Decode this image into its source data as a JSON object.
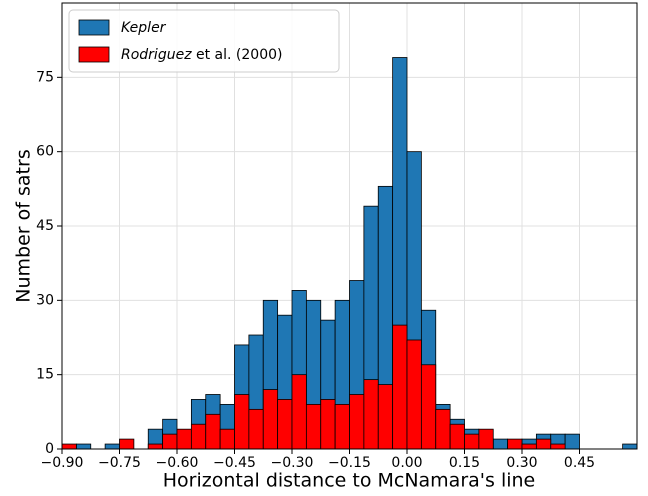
{
  "chart_data": {
    "type": "histogram",
    "x_label": "Horizontal distance to McNamara's line",
    "y_label": "Number of satrs",
    "bins": [
      -0.9,
      -0.8625,
      -0.825,
      -0.7875,
      -0.75,
      -0.7125,
      -0.675,
      -0.6375,
      -0.6,
      -0.5625,
      -0.525,
      -0.4875,
      -0.45,
      -0.4125,
      -0.375,
      -0.3375,
      -0.3,
      -0.2625,
      -0.225,
      -0.1875,
      -0.15,
      -0.1125,
      -0.075,
      -0.0375,
      0.0,
      0.0375,
      0.075,
      0.1125,
      0.15,
      0.1875,
      0.225,
      0.2625,
      0.3,
      0.3375,
      0.375,
      0.4125,
      0.45,
      0.4875,
      0.525,
      0.5625,
      0.6
    ],
    "series": [
      {
        "name": "Kepler",
        "color": "#1f77b4",
        "values": [
          0,
          1,
          0,
          1,
          0,
          0,
          4,
          6,
          3,
          10,
          11,
          9,
          21,
          23,
          30,
          27,
          32,
          30,
          26,
          30,
          34,
          49,
          53,
          79,
          60,
          28,
          9,
          6,
          4,
          2,
          2,
          1,
          2,
          3,
          3,
          3,
          0,
          0,
          0,
          1
        ]
      },
      {
        "name": "Rodriguez et al. (2000)",
        "color": "#ff0000",
        "values": [
          1,
          0,
          0,
          0,
          2,
          0,
          1,
          3,
          4,
          5,
          7,
          4,
          11,
          8,
          12,
          10,
          15,
          9,
          10,
          9,
          11,
          14,
          13,
          25,
          22,
          17,
          8,
          5,
          3,
          4,
          0,
          2,
          1,
          2,
          1,
          0,
          0,
          0,
          0,
          0
        ]
      }
    ],
    "xlim": [
      -0.9,
      0.6
    ],
    "ylim": [
      0,
      90
    ],
    "xticks": [
      {
        "value": -0.9,
        "label": "−0.90"
      },
      {
        "value": -0.75,
        "label": "−0.75"
      },
      {
        "value": -0.6,
        "label": "−0.60"
      },
      {
        "value": -0.45,
        "label": "−0.45"
      },
      {
        "value": -0.3,
        "label": "−0.30"
      },
      {
        "value": -0.15,
        "label": "−0.15"
      },
      {
        "value": 0,
        "label": "0.00"
      },
      0.15,
      {
        "value": 0.3,
        "label": "0.30"
      },
      0.45
    ],
    "yticks": [
      0,
      15,
      30,
      45,
      60,
      75
    ],
    "grid": true,
    "legend": "upper left"
  }
}
